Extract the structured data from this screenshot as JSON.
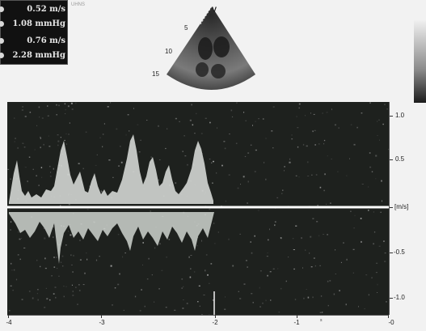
{
  "measurements": [
    {
      "value": "0.52 m/s"
    },
    {
      "value": "1.08 mmHg"
    },
    {
      "value": "0.76 m/s"
    },
    {
      "value": "2.28 mmHg"
    }
  ],
  "side_tag": "UHNS",
  "probe_marker": "V",
  "depth_labels": [
    "5",
    "10",
    "15"
  ],
  "doppler": {
    "y_ticks": [
      "1.0",
      "0.5",
      "[m/s]",
      "-0.5",
      "-1.0"
    ],
    "x_ticks": [
      "-4",
      "-3",
      "-2",
      "-1",
      "-0"
    ],
    "x_unit": "s",
    "colors": {
      "background": "#1e211e",
      "baseline": "#ffffff",
      "spectrum": "#cfd3cf"
    }
  }
}
